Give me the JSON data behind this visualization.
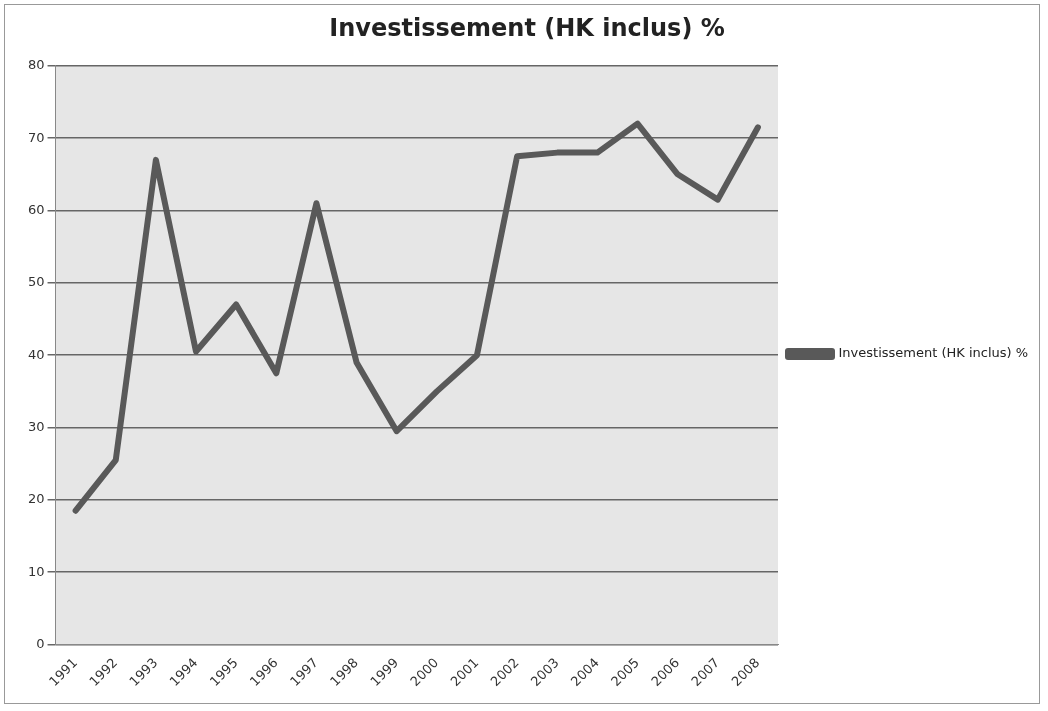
{
  "chart_data": {
    "type": "line",
    "title": "Investissement (HK inclus) %",
    "categories": [
      "1991",
      "1992",
      "1993",
      "1994",
      "1995",
      "1996",
      "1997",
      "1998",
      "1999",
      "2000",
      "2001",
      "2002",
      "2003",
      "2004",
      "2005",
      "2006",
      "2007",
      "2008"
    ],
    "series": [
      {
        "name": "Investissement (HK inclus) %",
        "color": "#595959",
        "values": [
          18.5,
          25.5,
          67,
          40.5,
          47,
          37.5,
          61,
          39,
          29.5,
          35,
          40,
          67.5,
          68,
          68,
          72,
          65,
          61.5,
          71.5
        ]
      }
    ],
    "ylim": [
      0,
      80
    ],
    "yticks": [
      0,
      10,
      20,
      30,
      40,
      50,
      60,
      70,
      80
    ],
    "grid": "y",
    "legend": "right",
    "marker": "none",
    "line_style": "solid"
  }
}
